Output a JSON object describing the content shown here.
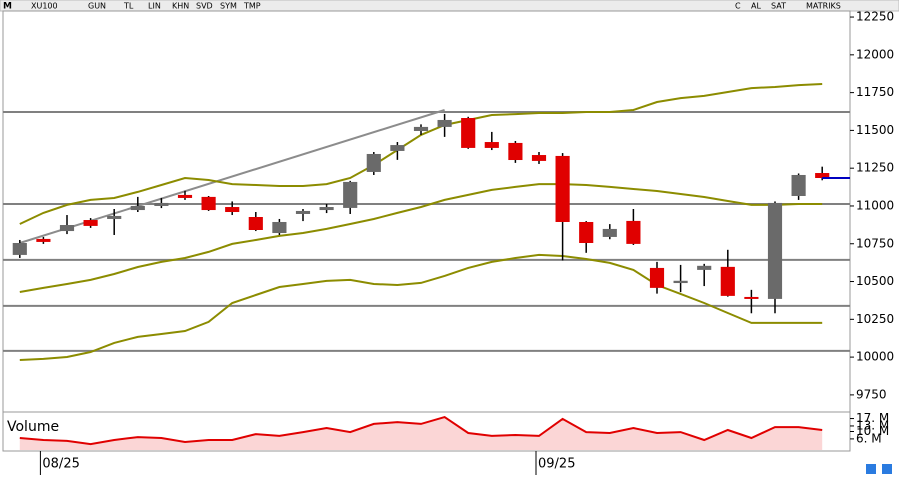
{
  "toolbar": {
    "symbol_prefix": "M",
    "symbol": "XU100",
    "buttons": [
      "GUN",
      "TL",
      "LIN",
      "KHN",
      "SVD",
      "SYM",
      "TMP"
    ],
    "right": [
      "C",
      "AL",
      "SAT",
      "MATRIKS"
    ]
  },
  "chart_data": {
    "type": "candlestick",
    "categories": [
      null,
      "08/25",
      null,
      null,
      null,
      null,
      null,
      null,
      null,
      null,
      null,
      null,
      null,
      null,
      null,
      null,
      null,
      null,
      null,
      null,
      null,
      null,
      "09/25",
      null,
      null,
      null,
      null,
      null,
      null,
      null,
      null,
      null,
      null,
      null,
      null
    ],
    "open": [
      10676,
      10782,
      10834,
      10907,
      10914,
      10973,
      11000,
      11073,
      11060,
      10993,
      10927,
      10821,
      10947,
      10973,
      10987,
      11225,
      11364,
      11496,
      11523,
      11582,
      11423,
      11417,
      11337,
      11331,
      10894,
      10795,
      10901,
      10590,
      10490,
      10577,
      10597,
      10398,
      10385,
      11066,
      11218
    ],
    "high": [
      10775,
      10795,
      10940,
      10920,
      10980,
      11060,
      11053,
      11100,
      11066,
      11030,
      10960,
      10914,
      10980,
      11013,
      11166,
      11357,
      11423,
      11540,
      11609,
      11590,
      11490,
      11430,
      11357,
      11350,
      10900,
      10880,
      10980,
      10630,
      10610,
      10617,
      10710,
      10445,
      11030,
      11215,
      11260
    ],
    "low": [
      10656,
      10749,
      10814,
      10855,
      10808,
      10960,
      10986,
      11040,
      10967,
      10940,
      10834,
      10808,
      10900,
      10953,
      10947,
      11205,
      11305,
      11470,
      11457,
      11378,
      11370,
      11285,
      11278,
      10640,
      10690,
      10780,
      10742,
      10420,
      10430,
      10470,
      10400,
      10290,
      10290,
      11040,
      11170
    ],
    "close": [
      10755,
      10762,
      10874,
      10868,
      10934,
      11000,
      11020,
      11053,
      10973,
      10960,
      10841,
      10894,
      10967,
      10993,
      11159,
      11344,
      11403,
      11523,
      11569,
      11384,
      11384,
      11304,
      11298,
      10894,
      10755,
      10848,
      10749,
      10458,
      10505,
      10604,
      10405,
      10385,
      11020,
      11205,
      11185
    ],
    "up_color": "#6a6a6a",
    "down_color": "#e00000",
    "bands": {
      "color": "#8c8c00",
      "upper": [
        10881,
        10954,
        11007,
        11040,
        11053,
        11093,
        11139,
        11185,
        11172,
        11145,
        11139,
        11132,
        11132,
        11145,
        11185,
        11271,
        11370,
        11470,
        11536,
        11569,
        11602,
        11608,
        11615,
        11615,
        11622,
        11622,
        11635,
        11688,
        11714,
        11728,
        11754,
        11780,
        11787,
        11800,
        11807
      ],
      "middle": [
        10431,
        10458,
        10484,
        10511,
        10550,
        10596,
        10630,
        10656,
        10696,
        10749,
        10775,
        10802,
        10821,
        10848,
        10881,
        10914,
        10954,
        10993,
        11040,
        11073,
        11106,
        11126,
        11145,
        11145,
        11139,
        11126,
        11112,
        11099,
        11079,
        11059,
        11033,
        11007,
        11007,
        11013,
        11013
      ],
      "lower": [
        9981,
        9988,
        10001,
        10034,
        10094,
        10134,
        10153,
        10173,
        10233,
        10358,
        10411,
        10464,
        10484,
        10504,
        10511,
        10484,
        10477,
        10491,
        10537,
        10590,
        10630,
        10656,
        10676,
        10669,
        10649,
        10623,
        10577,
        10477,
        10418,
        10358,
        10292,
        10226,
        10226,
        10226,
        10226
      ]
    },
    "horizontal_lines": {
      "color": "#808080",
      "values": [
        11622,
        11013,
        10643,
        10339,
        10041
      ]
    },
    "trendline": {
      "color": "#8c8c8c",
      "x": [
        0,
        18
      ],
      "y": [
        10755,
        11635
      ]
    },
    "ylim": [
      9650,
      12290
    ],
    "yticks": [
      9750,
      10000,
      10250,
      10500,
      10750,
      11000,
      11250,
      11500,
      11750,
      12000,
      12250
    ],
    "volume": {
      "label": "Volume",
      "color": "#e00000",
      "ylim": [
        0,
        20
      ],
      "yticks": [
        {
          "value": 6,
          "label": "6. M"
        },
        {
          "value": 10,
          "label": "10. M"
        },
        {
          "value": 13,
          "label": "13. M"
        },
        {
          "value": 17,
          "label": "17. M"
        }
      ],
      "values": [
        6.5,
        5.4,
        4.9,
        3.2,
        5.4,
        7.0,
        6.5,
        4.3,
        5.4,
        5.4,
        8.6,
        7.6,
        9.7,
        11.9,
        9.7,
        14.1,
        15.1,
        14.1,
        17.8,
        9.2,
        7.6,
        8.1,
        7.6,
        16.8,
        9.7,
        9.2,
        11.9,
        9.2,
        9.7,
        5.4,
        10.8,
        6.5,
        12.4,
        12.4,
        10.8
      ]
    }
  }
}
